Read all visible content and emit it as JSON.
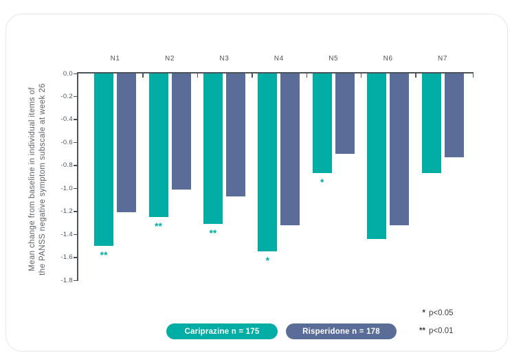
{
  "chart_data": {
    "type": "bar",
    "title": "",
    "categories": [
      "N1",
      "N2",
      "N3",
      "N4",
      "N5",
      "N6",
      "N7"
    ],
    "series": [
      {
        "name": "Cariprazine n = 175",
        "color": "#00ada4",
        "values": [
          -1.5,
          -1.25,
          -1.31,
          -1.55,
          -0.87,
          -1.44,
          -0.87
        ],
        "significance": [
          "**",
          "**",
          "**",
          "*",
          "*",
          "",
          ""
        ]
      },
      {
        "name": "Risperidone n = 178",
        "color": "#5a6d98",
        "values": [
          -1.21,
          -1.01,
          -1.07,
          -1.32,
          -0.7,
          -1.32,
          -0.73
        ]
      }
    ],
    "xlabel": "",
    "ylabel": "Mean change from baseline in individual items of\nthe PANSS negative symptom subscale at week 26",
    "ylim": [
      0,
      -1.8
    ],
    "yticks": [
      "0.0",
      "-0.2",
      "-0.4",
      "-0.6",
      "-0.8",
      "-1.0",
      "-1.2",
      "-1.4",
      "-1.6",
      "-1.8"
    ],
    "grid": false,
    "legend_position": "bottom",
    "bars_direction": "down"
  },
  "legend": [
    {
      "label": "Cariprazine n = 175",
      "color": "#00ada4"
    },
    {
      "label": "Risperidone n = 178",
      "color": "#5a6d98"
    }
  ],
  "annotations": [
    {
      "star": "*",
      "text": "p<0.05"
    },
    {
      "star": "**",
      "text": "p<0.01"
    }
  ],
  "colors": {
    "axis": "#4a5158",
    "tick_text": "#4a535b",
    "note_text": "#3a4147",
    "card_border": "#e6e6e6"
  }
}
